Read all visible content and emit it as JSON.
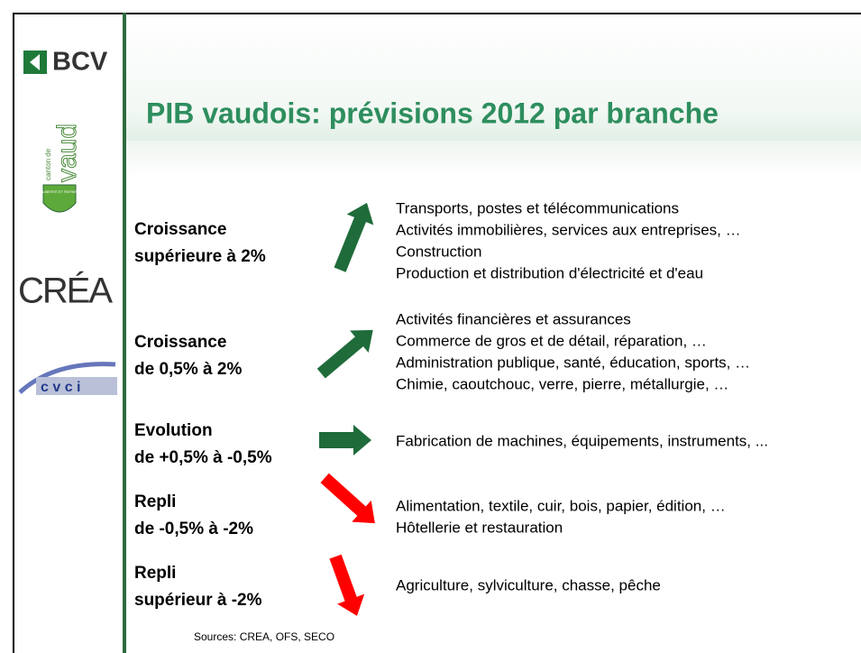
{
  "logos": {
    "bcv": "BCV",
    "vaud_small": "canton de",
    "vaud": "vaud",
    "vaud_motto": "LIBERTÉ ET PATRIE",
    "crea": "CRÉA",
    "cvci": "c v c i"
  },
  "title": "PIB vaudois: prévisions 2012 par branche",
  "rows": [
    {
      "label": [
        "Croissance",
        "supérieure à 2%"
      ],
      "items": [
        "Transports, postes et télécommunications",
        "Activités immobilières, services aux entreprises, …",
        "Construction",
        "Production et distribution d'électricité et d'eau"
      ]
    },
    {
      "label": [
        "Croissance",
        "de 0,5% à 2%"
      ],
      "items": [
        "Activités financières et assurances",
        "Commerce de gros et de détail, réparation, …",
        "Administration publique, santé, éducation, sports, …",
        "Chimie, caoutchouc, verre, pierre, métallurgie, …"
      ]
    },
    {
      "label": [
        "Evolution",
        "de +0,5% à -0,5%"
      ],
      "items": [
        "Fabrication de machines, équipements, instruments, ..."
      ]
    },
    {
      "label": [
        "Repli",
        "de -0,5% à -2%"
      ],
      "items": [
        "Alimentation, textile, cuir, bois, papier, édition, …",
        "Hôtellerie et restauration"
      ]
    },
    {
      "label": [
        "Repli",
        "supérieur à -2%"
      ],
      "items": [
        "Agriculture, sylviculture, chasse, pêche"
      ]
    }
  ],
  "source": "Sources: CREA, OFS, SECO"
}
